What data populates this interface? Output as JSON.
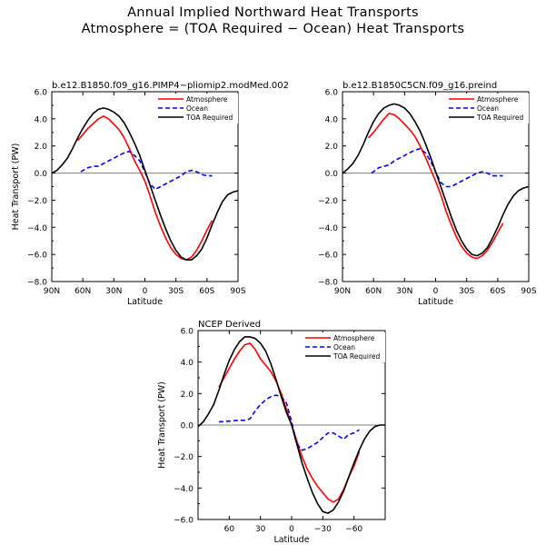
{
  "figure": {
    "title_line1": "Annual Implied Northward Heat Transports",
    "title_line2": "Atmosphere = (TOA Required − Ocean) Heat Transports"
  },
  "colors": {
    "atmosphere": "#ff0000",
    "ocean": "#0000ff",
    "toa": "#000000",
    "zero_line": "#808080"
  },
  "chart_data": [
    {
      "type": "line",
      "title": "b.e12.B1850.f09_g16.PIMP4−pliomip2.modMed.002",
      "xlabel": "Latitude",
      "ylabel": "Heat Transport (PW)",
      "xlim": [
        90,
        -90
      ],
      "ylim": [
        -8,
        6
      ],
      "x_ticks": [
        90,
        60,
        30,
        0,
        -30,
        -60,
        -90
      ],
      "x_tick_labels": [
        "90N",
        "60N",
        "30N",
        "0",
        "30S",
        "60S",
        "90S"
      ],
      "y_ticks": [
        -8,
        -6,
        -4,
        -2,
        0,
        2,
        4,
        6
      ],
      "y_tick_labels": [
        "−8.0",
        "−6.0",
        "−4.0",
        "−2.0",
        "0.0",
        "2.0",
        "4.0",
        "6.0"
      ],
      "legend_position": "top-right",
      "series": [
        {
          "name": "Atmosphere",
          "color": "#ff0000",
          "dash": "solid",
          "x": [
            65,
            55,
            45,
            40,
            35,
            30,
            25,
            20,
            15,
            10,
            5,
            0,
            -5,
            -10,
            -15,
            -20,
            -25,
            -30,
            -35,
            -40,
            -45,
            -50,
            -55,
            -60,
            -65
          ],
          "y": [
            2.4,
            3.3,
            4.0,
            4.2,
            4.0,
            3.6,
            3.2,
            2.6,
            1.8,
            0.9,
            0.2,
            -0.6,
            -1.7,
            -2.9,
            -3.9,
            -4.8,
            -5.5,
            -6.0,
            -6.3,
            -6.4,
            -6.2,
            -5.7,
            -5.0,
            -4.2,
            -3.5
          ]
        },
        {
          "name": "Ocean",
          "color": "#0000ff",
          "dash": "dashed",
          "x": [
            62,
            55,
            50,
            45,
            40,
            35,
            30,
            25,
            20,
            15,
            10,
            5,
            0,
            -5,
            -10,
            -15,
            -20,
            -25,
            -30,
            -35,
            -40,
            -45,
            -50,
            -55,
            -60,
            -65
          ],
          "y": [
            0.1,
            0.4,
            0.5,
            0.5,
            0.7,
            0.9,
            1.1,
            1.3,
            1.5,
            1.6,
            1.3,
            0.9,
            0.1,
            -0.8,
            -1.2,
            -1.0,
            -0.8,
            -0.6,
            -0.4,
            -0.2,
            0.1,
            0.2,
            0.1,
            -0.1,
            -0.2,
            -0.2
          ]
        },
        {
          "name": "TOA Required",
          "color": "#000000",
          "dash": "solid",
          "x": [
            90,
            85,
            80,
            75,
            70,
            65,
            60,
            55,
            50,
            45,
            40,
            35,
            30,
            25,
            20,
            15,
            10,
            5,
            0,
            -5,
            -10,
            -15,
            -20,
            -25,
            -30,
            -35,
            -40,
            -45,
            -50,
            -55,
            -60,
            -65,
            -70,
            -75,
            -80,
            -85,
            -90
          ],
          "y": [
            0.0,
            0.2,
            0.6,
            1.1,
            1.8,
            2.6,
            3.3,
            3.9,
            4.4,
            4.7,
            4.8,
            4.7,
            4.5,
            4.2,
            3.7,
            3.0,
            2.2,
            1.3,
            0.2,
            -0.9,
            -2.0,
            -3.1,
            -4.1,
            -5.0,
            -5.7,
            -6.2,
            -6.4,
            -6.4,
            -6.1,
            -5.6,
            -4.8,
            -3.8,
            -2.9,
            -2.1,
            -1.6,
            -1.4,
            -1.3
          ]
        }
      ]
    },
    {
      "type": "line",
      "title": "b.e12.B1850C5CN.f09_g16.preind",
      "xlabel": "Latitude",
      "ylabel": "",
      "xlim": [
        90,
        -90
      ],
      "ylim": [
        -8,
        6
      ],
      "x_ticks": [
        90,
        60,
        30,
        0,
        -30,
        -60,
        -90
      ],
      "x_tick_labels": [
        "90N",
        "60N",
        "30N",
        "0",
        "30S",
        "60S",
        "90S"
      ],
      "y_ticks": [
        -8,
        -6,
        -4,
        -2,
        0,
        2,
        4,
        6
      ],
      "y_tick_labels": [
        "−8.0",
        "−6.0",
        "−4.0",
        "−2.0",
        "0.0",
        "2.0",
        "4.0",
        "6.0"
      ],
      "legend_position": "top-right",
      "series": [
        {
          "name": "Atmosphere",
          "color": "#ff0000",
          "dash": "solid",
          "x": [
            65,
            60,
            55,
            50,
            45,
            40,
            35,
            30,
            25,
            20,
            15,
            10,
            5,
            0,
            -5,
            -10,
            -15,
            -20,
            -25,
            -30,
            -35,
            -40,
            -45,
            -50,
            -55,
            -60,
            -65
          ],
          "y": [
            2.6,
            3.0,
            3.5,
            4.0,
            4.4,
            4.3,
            4.0,
            3.6,
            3.2,
            2.7,
            2.0,
            1.2,
            0.3,
            -0.6,
            -1.6,
            -2.8,
            -3.8,
            -4.7,
            -5.4,
            -5.9,
            -6.2,
            -6.3,
            -6.1,
            -5.7,
            -5.1,
            -4.4,
            -3.7
          ]
        },
        {
          "name": "Ocean",
          "color": "#0000ff",
          "dash": "dashed",
          "x": [
            62,
            55,
            50,
            45,
            40,
            35,
            30,
            25,
            20,
            15,
            10,
            5,
            0,
            -5,
            -10,
            -15,
            -20,
            -25,
            -30,
            -35,
            -40,
            -45,
            -50,
            -55,
            -60,
            -65
          ],
          "y": [
            0.0,
            0.4,
            0.5,
            0.6,
            0.9,
            1.1,
            1.3,
            1.5,
            1.7,
            1.8,
            1.5,
            0.9,
            0.1,
            -0.7,
            -1.0,
            -1.0,
            -0.8,
            -0.6,
            -0.4,
            -0.2,
            0.0,
            0.1,
            0.0,
            -0.2,
            -0.2,
            -0.2
          ]
        },
        {
          "name": "TOA Required",
          "color": "#000000",
          "dash": "solid",
          "x": [
            90,
            85,
            80,
            75,
            70,
            65,
            60,
            55,
            50,
            45,
            40,
            35,
            30,
            25,
            20,
            15,
            10,
            5,
            0,
            -5,
            -10,
            -15,
            -20,
            -25,
            -30,
            -35,
            -40,
            -45,
            -50,
            -55,
            -60,
            -65,
            -70,
            -75,
            -80,
            -85,
            -90
          ],
          "y": [
            0.0,
            0.3,
            0.7,
            1.3,
            2.1,
            3.0,
            3.8,
            4.4,
            4.8,
            5.0,
            5.1,
            5.0,
            4.8,
            4.4,
            3.8,
            3.1,
            2.2,
            1.2,
            0.1,
            -1.0,
            -2.1,
            -3.2,
            -4.2,
            -5.0,
            -5.6,
            -6.0,
            -6.1,
            -5.9,
            -5.5,
            -4.8,
            -4.0,
            -3.1,
            -2.3,
            -1.7,
            -1.3,
            -1.1,
            -1.0
          ]
        }
      ]
    },
    {
      "type": "line",
      "title": "NCEP Derived",
      "xlabel": "Latitude",
      "ylabel": "Heat Transport (PW)",
      "xlim": [
        90,
        -90
      ],
      "ylim": [
        -6,
        6
      ],
      "x_ticks": [
        60,
        30,
        0,
        -30,
        -60
      ],
      "x_tick_labels": [
        "60",
        "30",
        "0",
        "−30",
        "−60"
      ],
      "y_ticks": [
        -6,
        -4,
        -2,
        0,
        2,
        4,
        6
      ],
      "y_tick_labels": [
        "−6.0",
        "−4.0",
        "−2.0",
        "0.0",
        "2.0",
        "4.0",
        "6.0"
      ],
      "legend_position": "top-right",
      "series": [
        {
          "name": "Atmosphere",
          "color": "#ff0000",
          "dash": "solid",
          "x": [
            70,
            65,
            60,
            55,
            50,
            45,
            40,
            35,
            30,
            25,
            20,
            15,
            10,
            5,
            0,
            -5,
            -10,
            -15,
            -20,
            -25,
            -30,
            -35,
            -40,
            -45,
            -50,
            -55,
            -60,
            -65
          ],
          "y": [
            2.4,
            3.0,
            3.6,
            4.2,
            4.7,
            5.1,
            5.2,
            4.8,
            4.2,
            3.8,
            3.4,
            2.8,
            2.0,
            1.0,
            0.0,
            -1.0,
            -2.0,
            -2.8,
            -3.4,
            -3.9,
            -4.3,
            -4.7,
            -4.9,
            -4.7,
            -4.1,
            -3.3,
            -2.6,
            -1.7
          ]
        },
        {
          "name": "Ocean",
          "color": "#0000ff",
          "dash": "dashed",
          "x": [
            70,
            60,
            50,
            45,
            40,
            35,
            30,
            25,
            20,
            15,
            10,
            5,
            0,
            -5,
            -10,
            -15,
            -20,
            -25,
            -30,
            -35,
            -40,
            -45,
            -50,
            -55,
            -60,
            -65
          ],
          "y": [
            0.2,
            0.25,
            0.3,
            0.3,
            0.4,
            0.9,
            1.3,
            1.6,
            1.8,
            1.9,
            1.8,
            1.4,
            0.2,
            -1.2,
            -1.6,
            -1.5,
            -1.3,
            -1.1,
            -0.8,
            -0.5,
            -0.5,
            -0.7,
            -0.9,
            -0.6,
            -0.5,
            -0.3
          ]
        },
        {
          "name": "TOA Required",
          "color": "#000000",
          "dash": "solid",
          "x": [
            90,
            85,
            80,
            75,
            70,
            65,
            60,
            55,
            50,
            45,
            40,
            35,
            30,
            25,
            20,
            15,
            10,
            5,
            0,
            -5,
            -10,
            -15,
            -20,
            -25,
            -30,
            -35,
            -40,
            -45,
            -50,
            -55,
            -60,
            -65,
            -70,
            -75,
            -80,
            -85,
            -90
          ],
          "y": [
            -0.1,
            0.2,
            0.7,
            1.3,
            2.2,
            3.2,
            4.1,
            4.8,
            5.3,
            5.6,
            5.6,
            5.5,
            5.2,
            4.7,
            3.9,
            2.9,
            1.8,
            0.8,
            0.0,
            -1.2,
            -2.4,
            -3.4,
            -4.3,
            -5.0,
            -5.5,
            -5.6,
            -5.4,
            -4.9,
            -4.2,
            -3.3,
            -2.4,
            -1.6,
            -0.9,
            -0.4,
            -0.1,
            0.0,
            0.0
          ]
        }
      ]
    }
  ]
}
